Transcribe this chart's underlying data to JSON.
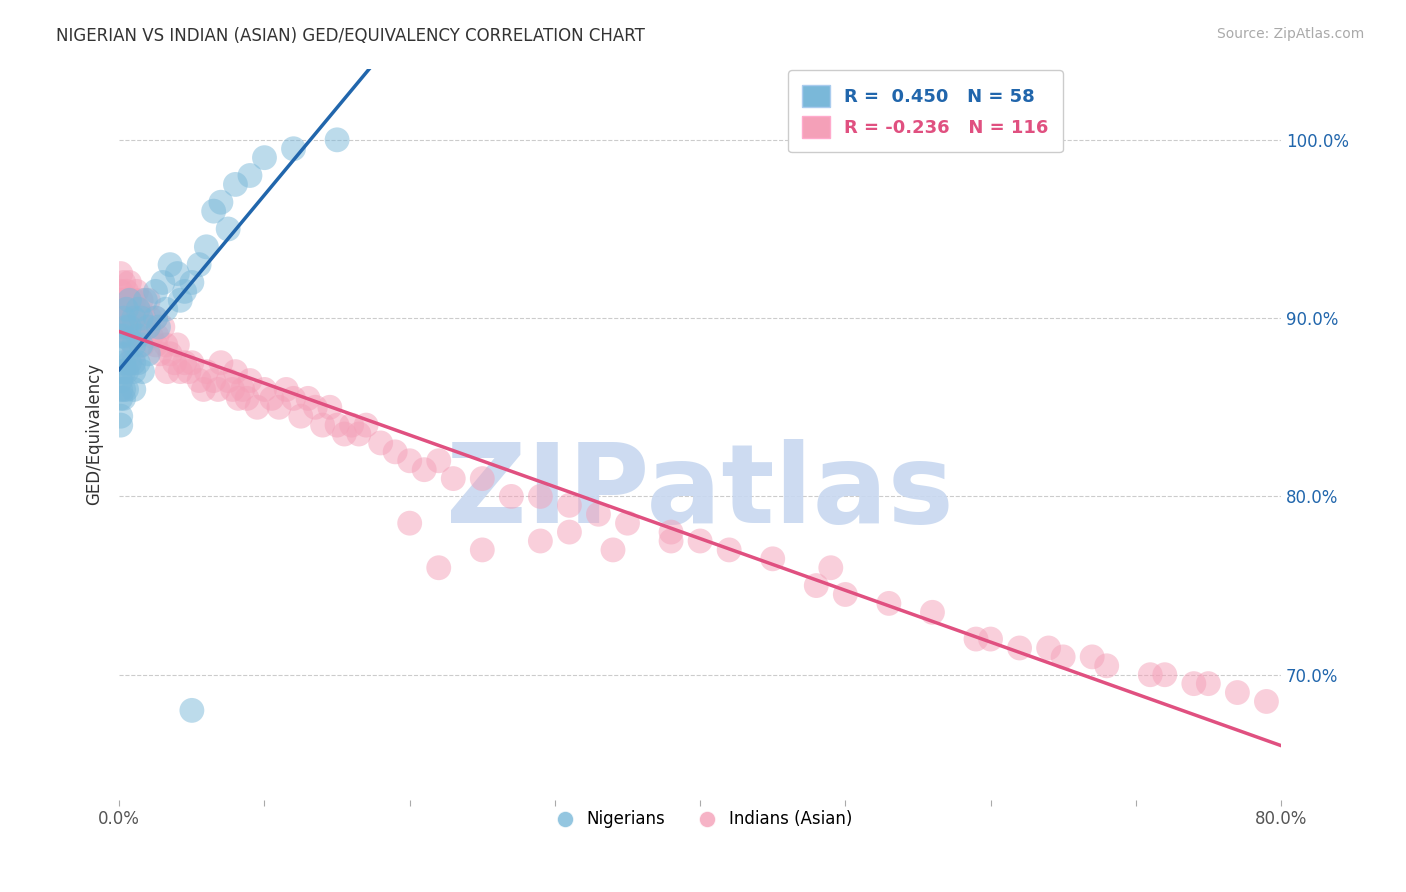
{
  "title": "NIGERIAN VS INDIAN (ASIAN) GED/EQUIVALENCY CORRELATION CHART",
  "source": "Source: ZipAtlas.com",
  "ylabel": "GED/Equivalency",
  "xlim": [
    0.0,
    0.8
  ],
  "ylim": [
    0.63,
    1.04
  ],
  "yticks": [
    0.7,
    0.8,
    0.9,
    1.0
  ],
  "yticklabels": [
    "70.0%",
    "80.0%",
    "90.0%",
    "100.0%"
  ],
  "legend_label_blue": "Nigerians",
  "legend_label_pink": "Indians (Asian)",
  "blue_color": "#7ab8d9",
  "pink_color": "#f4a0b8",
  "blue_line_color": "#2166ac",
  "pink_line_color": "#e05080",
  "watermark": "ZIPatlas",
  "watermark_color": "#c8d8f0",
  "nigerian_x": [
    0.001,
    0.001,
    0.001,
    0.001,
    0.001,
    0.001,
    0.001,
    0.001,
    0.003,
    0.003,
    0.003,
    0.003,
    0.003,
    0.003,
    0.005,
    0.005,
    0.005,
    0.005,
    0.005,
    0.007,
    0.007,
    0.007,
    0.007,
    0.01,
    0.01,
    0.01,
    0.01,
    0.01,
    0.013,
    0.013,
    0.013,
    0.015,
    0.015,
    0.016,
    0.018,
    0.02,
    0.02,
    0.025,
    0.025,
    0.027,
    0.03,
    0.032,
    0.035,
    0.04,
    0.042,
    0.045,
    0.05,
    0.055,
    0.06,
    0.065,
    0.07,
    0.075,
    0.08,
    0.09,
    0.1,
    0.12,
    0.15,
    0.05
  ],
  "nigerian_y": [
    0.86,
    0.87,
    0.88,
    0.89,
    0.855,
    0.84,
    0.865,
    0.845,
    0.89,
    0.875,
    0.86,
    0.9,
    0.855,
    0.87,
    0.895,
    0.88,
    0.87,
    0.905,
    0.86,
    0.895,
    0.91,
    0.875,
    0.888,
    0.885,
    0.9,
    0.87,
    0.86,
    0.875,
    0.905,
    0.89,
    0.875,
    0.9,
    0.885,
    0.87,
    0.91,
    0.895,
    0.88,
    0.915,
    0.9,
    0.895,
    0.92,
    0.905,
    0.93,
    0.925,
    0.91,
    0.915,
    0.92,
    0.93,
    0.94,
    0.96,
    0.965,
    0.95,
    0.975,
    0.98,
    0.99,
    0.995,
    1.0,
    0.68
  ],
  "indian_x": [
    0.001,
    0.001,
    0.001,
    0.001,
    0.001,
    0.003,
    0.003,
    0.003,
    0.003,
    0.003,
    0.005,
    0.005,
    0.005,
    0.005,
    0.007,
    0.007,
    0.007,
    0.007,
    0.01,
    0.01,
    0.01,
    0.01,
    0.01,
    0.012,
    0.012,
    0.013,
    0.013,
    0.015,
    0.015,
    0.016,
    0.017,
    0.02,
    0.02,
    0.021,
    0.022,
    0.025,
    0.025,
    0.026,
    0.028,
    0.03,
    0.032,
    0.033,
    0.035,
    0.038,
    0.04,
    0.042,
    0.045,
    0.048,
    0.05,
    0.055,
    0.058,
    0.06,
    0.065,
    0.068,
    0.07,
    0.075,
    0.078,
    0.08,
    0.082,
    0.085,
    0.088,
    0.09,
    0.095,
    0.1,
    0.105,
    0.11,
    0.115,
    0.12,
    0.125,
    0.13,
    0.135,
    0.14,
    0.145,
    0.15,
    0.155,
    0.16,
    0.165,
    0.17,
    0.18,
    0.19,
    0.2,
    0.21,
    0.22,
    0.23,
    0.25,
    0.27,
    0.29,
    0.31,
    0.33,
    0.35,
    0.38,
    0.4,
    0.42,
    0.45,
    0.48,
    0.5,
    0.53,
    0.56,
    0.6,
    0.64,
    0.67,
    0.71,
    0.74,
    0.49,
    0.38,
    0.34,
    0.31,
    0.29,
    0.25,
    0.22,
    0.2,
    0.59,
    0.62,
    0.65,
    0.68,
    0.72,
    0.75,
    0.77,
    0.79
  ],
  "indian_y": [
    0.915,
    0.905,
    0.895,
    0.925,
    0.91,
    0.905,
    0.895,
    0.92,
    0.91,
    0.9,
    0.9,
    0.915,
    0.89,
    0.905,
    0.91,
    0.9,
    0.89,
    0.92,
    0.895,
    0.91,
    0.905,
    0.88,
    0.895,
    0.9,
    0.915,
    0.905,
    0.89,
    0.895,
    0.91,
    0.885,
    0.9,
    0.895,
    0.91,
    0.9,
    0.89,
    0.885,
    0.9,
    0.89,
    0.88,
    0.895,
    0.885,
    0.87,
    0.88,
    0.875,
    0.885,
    0.87,
    0.875,
    0.87,
    0.875,
    0.865,
    0.86,
    0.87,
    0.865,
    0.86,
    0.875,
    0.865,
    0.86,
    0.87,
    0.855,
    0.86,
    0.855,
    0.865,
    0.85,
    0.86,
    0.855,
    0.85,
    0.86,
    0.855,
    0.845,
    0.855,
    0.85,
    0.84,
    0.85,
    0.84,
    0.835,
    0.84,
    0.835,
    0.84,
    0.83,
    0.825,
    0.82,
    0.815,
    0.82,
    0.81,
    0.81,
    0.8,
    0.8,
    0.795,
    0.79,
    0.785,
    0.78,
    0.775,
    0.77,
    0.765,
    0.75,
    0.745,
    0.74,
    0.735,
    0.72,
    0.715,
    0.71,
    0.7,
    0.695,
    0.76,
    0.775,
    0.77,
    0.78,
    0.775,
    0.77,
    0.76,
    0.785,
    0.72,
    0.715,
    0.71,
    0.705,
    0.7,
    0.695,
    0.69,
    0.685
  ]
}
